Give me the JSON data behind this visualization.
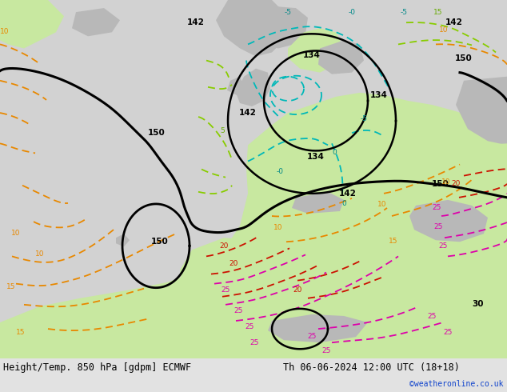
{
  "title_left": "Height/Temp. 850 hPa [gdpm] ECMWF",
  "title_right": "Th 06-06-2024 12:00 UTC (18+18)",
  "copyright": "©weatheronline.co.uk",
  "fig_width": 6.34,
  "fig_height": 4.9,
  "dpi": 100,
  "bg_color": "#d8d8d8",
  "sea_color": "#d2d2d2",
  "land_green": "#c8e8a0",
  "land_grey": "#b8b8b8",
  "footer_bg": "#e2e2e2"
}
